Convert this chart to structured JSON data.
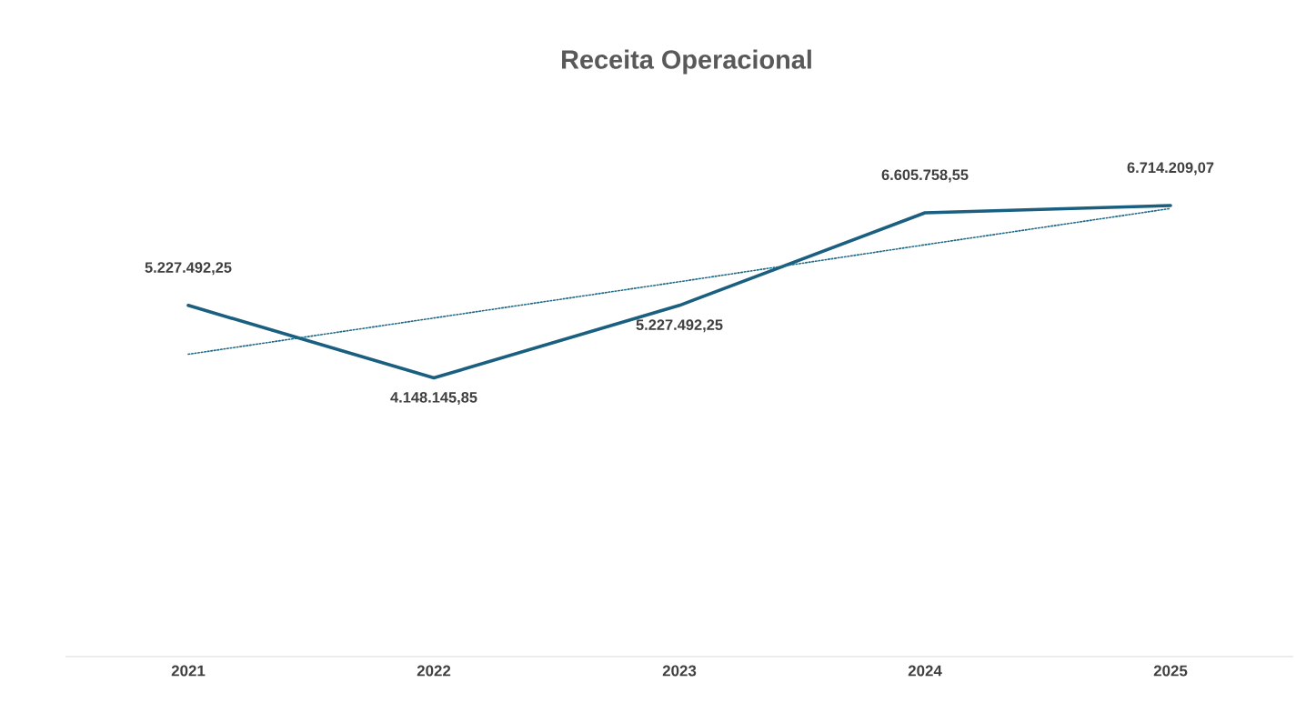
{
  "chart_data": {
    "type": "line",
    "title": "Receita Operacional",
    "categories": [
      "2021",
      "2022",
      "2023",
      "2024",
      "2025"
    ],
    "series": [
      {
        "color": "#1b5f80",
        "values": [
          5227492.25,
          4148145.85,
          5227492.25,
          6605758.55,
          6714209.07
        ],
        "data_labels": true,
        "value_labels": [
          "5.227.492,25",
          "4.148.145,85",
          "5.227.492,25",
          "6.605.758,55",
          "6.714.209,07"
        ]
      },
      {
        "type": "line",
        "line_style": "dotted",
        "color": "#1f6a86",
        "values": [
          4500000,
          5040000,
          5580000,
          6130000,
          6670000
        ]
      }
    ],
    "marker": "none"
  }
}
